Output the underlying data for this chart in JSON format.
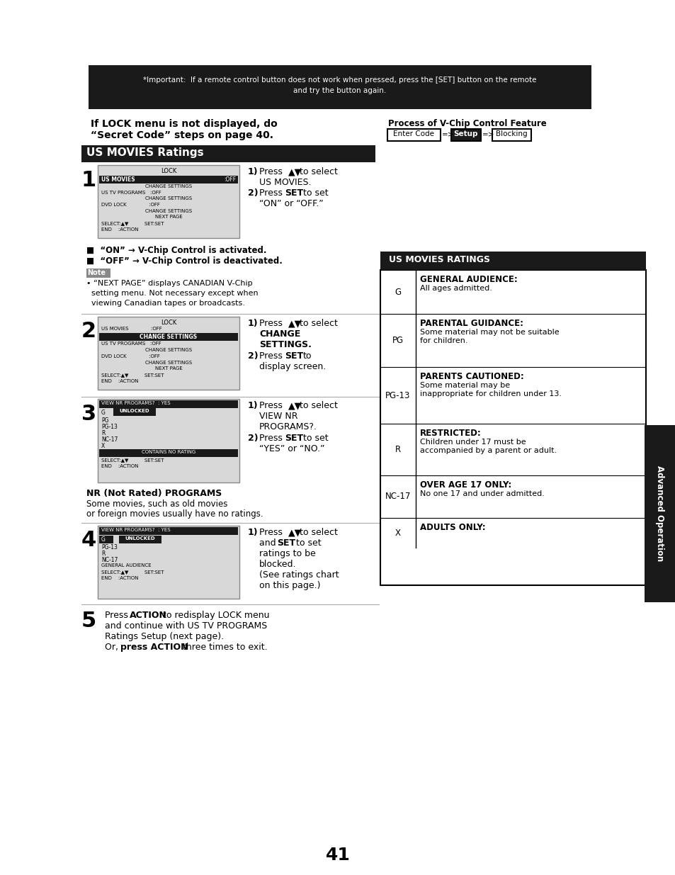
{
  "page_bg": "#ffffff",
  "top_bar_bg": "#1a1a1a",
  "section_bg": "#1a1a1a",
  "ratings_table_bg": "#1a1a1a",
  "side_tab_bg": "#1a1a1a",
  "ratings": [
    {
      "code": "G",
      "title": "GENERAL AUDIENCE:",
      "desc": "All ages admitted.",
      "desc2": ""
    },
    {
      "code": "PG",
      "title": "PARENTAL GUIDANCE:",
      "desc": "Some material may not be suitable",
      "desc2": "for children."
    },
    {
      "code": "PG-13",
      "title": "PARENTS CAUTIONED:",
      "desc": "Some material may be",
      "desc2": "inappropriate for children under 13."
    },
    {
      "code": "R",
      "title": "RESTRICTED:",
      "desc": "Children under 17 must be",
      "desc2": "accompanied by a parent or adult."
    },
    {
      "code": "NC-17",
      "title": "OVER AGE 17 ONLY:",
      "desc": "No one 17 and under admitted.",
      "desc2": ""
    },
    {
      "code": "X",
      "title": "ADULTS ONLY:",
      "desc": "",
      "desc2": ""
    }
  ]
}
